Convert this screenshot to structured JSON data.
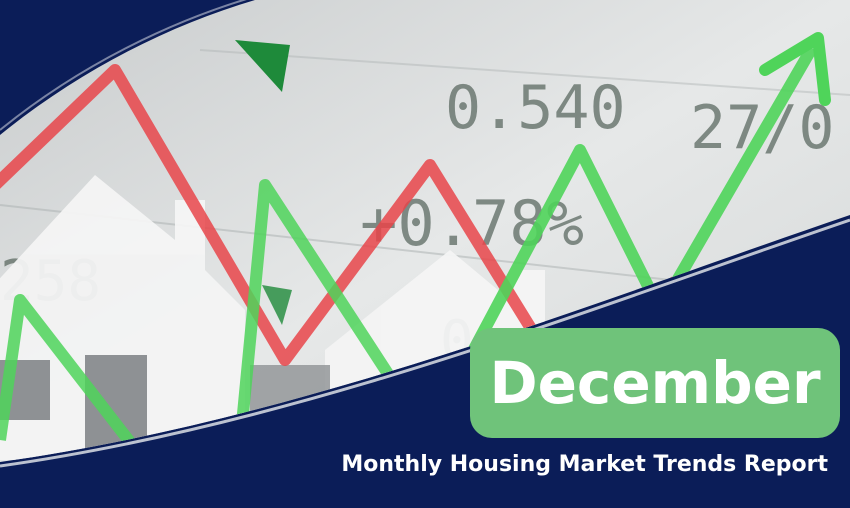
{
  "banner": {
    "month": "December",
    "subtitle": "Monthly Housing Market Trends Report"
  },
  "background_photo_text": {
    "ticker_value": "0.540",
    "ticker_second": "27/0",
    "ticker_change": "+0.78%",
    "ticker_left": "258",
    "ticker_partial": "0"
  },
  "colors": {
    "navy": "#0b1d58",
    "badge_green": "#6fc37a",
    "line_green": "#4fd45a",
    "line_red": "#e8454a",
    "photo_gray": "#dcdfe0"
  },
  "icons": [
    "house-silhouette",
    "trend-up-arrow",
    "triangle-marker"
  ]
}
